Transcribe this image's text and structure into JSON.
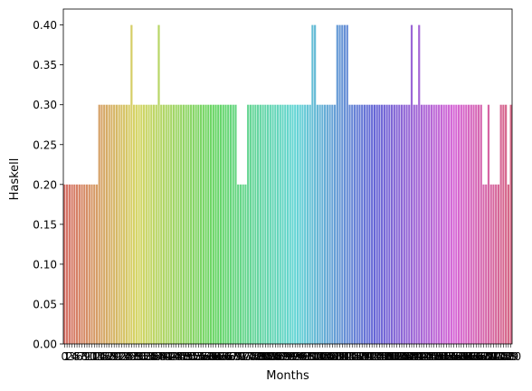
{
  "chart_data": {
    "type": "bar",
    "title": "",
    "xlabel": "Months",
    "ylabel": "Haskell",
    "ylim": [
      0,
      0.42
    ],
    "yticks": [
      0.0,
      0.05,
      0.1,
      0.15,
      0.2,
      0.25,
      0.3,
      0.35,
      0.4
    ],
    "ytick_labels": [
      "0.00",
      "0.05",
      "0.10",
      "0.15",
      "0.20",
      "0.25",
      "0.30",
      "0.35",
      "0.40"
    ],
    "grid": false,
    "legend": "none",
    "palette": "husl",
    "categories": [
      "0",
      "1",
      "2",
      "3",
      "4",
      "5",
      "6",
      "7",
      "8",
      "9",
      "10",
      "11",
      "12",
      "13",
      "14",
      "15",
      "16",
      "17",
      "18",
      "19",
      "20",
      "21",
      "22",
      "23",
      "24",
      "25",
      "26",
      "27",
      "28",
      "29",
      "30",
      "31",
      "32",
      "33",
      "34",
      "35",
      "36",
      "37",
      "38",
      "39",
      "40",
      "41",
      "42",
      "43",
      "44",
      "45",
      "46",
      "47",
      "48",
      "49",
      "50",
      "51",
      "52",
      "53",
      "54",
      "55",
      "56",
      "57",
      "58",
      "59",
      "60",
      "61",
      "62",
      "63",
      "64",
      "65",
      "66",
      "67",
      "68",
      "69",
      "70",
      "71",
      "72",
      "73",
      "74",
      "75",
      "76",
      "77",
      "78",
      "79",
      "80",
      "81",
      "82",
      "83",
      "84",
      "85",
      "86",
      "87",
      "88",
      "89",
      "90",
      "91",
      "92",
      "93",
      "94",
      "95",
      "96",
      "97",
      "98",
      "99",
      "100",
      "101",
      "102",
      "103",
      "104",
      "105",
      "106",
      "107",
      "108",
      "109",
      "110",
      "111",
      "112",
      "113",
      "114",
      "115",
      "116",
      "117",
      "118",
      "119",
      "120",
      "121",
      "122",
      "123",
      "124",
      "125",
      "126",
      "127",
      "128",
      "129",
      "130",
      "131",
      "132",
      "133",
      "134",
      "135",
      "136",
      "137",
      "138",
      "139",
      "140",
      "141",
      "142",
      "143",
      "144",
      "145",
      "146",
      "147",
      "148",
      "149",
      "150",
      "151",
      "152",
      "153",
      "154",
      "155",
      "156",
      "157",
      "158",
      "159",
      "160",
      "161",
      "162",
      "163",
      "164",
      "165",
      "166",
      "167",
      "168",
      "169",
      "170",
      "171",
      "172",
      "173",
      "174",
      "175",
      "176",
      "177",
      "178",
      "179",
      "180"
    ],
    "values": [
      0.2,
      0.2,
      0.2,
      0.2,
      0.2,
      0.2,
      0.2,
      0.2,
      0.2,
      0.2,
      0.2,
      0.2,
      0.2,
      0.2,
      0.3,
      0.3,
      0.3,
      0.3,
      0.3,
      0.3,
      0.3,
      0.3,
      0.3,
      0.3,
      0.3,
      0.3,
      0.3,
      0.4,
      0.3,
      0.3,
      0.3,
      0.3,
      0.3,
      0.3,
      0.3,
      0.3,
      0.3,
      0.3,
      0.4,
      0.3,
      0.3,
      0.3,
      0.3,
      0.3,
      0.3,
      0.3,
      0.3,
      0.3,
      0.3,
      0.3,
      0.3,
      0.3,
      0.3,
      0.3,
      0.3,
      0.3,
      0.3,
      0.3,
      0.3,
      0.3,
      0.3,
      0.3,
      0.3,
      0.3,
      0.3,
      0.3,
      0.3,
      0.3,
      0.3,
      0.3,
      0.2,
      0.2,
      0.2,
      0.2,
      0.3,
      0.3,
      0.3,
      0.3,
      0.3,
      0.3,
      0.3,
      0.3,
      0.3,
      0.3,
      0.3,
      0.3,
      0.3,
      0.3,
      0.3,
      0.3,
      0.3,
      0.3,
      0.3,
      0.3,
      0.3,
      0.3,
      0.3,
      0.3,
      0.3,
      0.3,
      0.4,
      0.4,
      0.3,
      0.3,
      0.3,
      0.3,
      0.3,
      0.3,
      0.3,
      0.3,
      0.4,
      0.4,
      0.4,
      0.4,
      0.4,
      0.3,
      0.3,
      0.3,
      0.3,
      0.3,
      0.3,
      0.3,
      0.3,
      0.3,
      0.3,
      0.3,
      0.3,
      0.3,
      0.3,
      0.3,
      0.3,
      0.3,
      0.3,
      0.3,
      0.3,
      0.3,
      0.3,
      0.3,
      0.3,
      0.3,
      0.4,
      0.3,
      0.3,
      0.4,
      0.3,
      0.3,
      0.3,
      0.3,
      0.3,
      0.3,
      0.3,
      0.3,
      0.3,
      0.3,
      0.3,
      0.3,
      0.3,
      0.3,
      0.3,
      0.3,
      0.3,
      0.3,
      0.3,
      0.3,
      0.3,
      0.3,
      0.3,
      0.3,
      0.3,
      0.2,
      0.2,
      0.3,
      0.2,
      0.2,
      0.2,
      0.2,
      0.3,
      0.3,
      0.3,
      0.2,
      0.3
    ]
  }
}
